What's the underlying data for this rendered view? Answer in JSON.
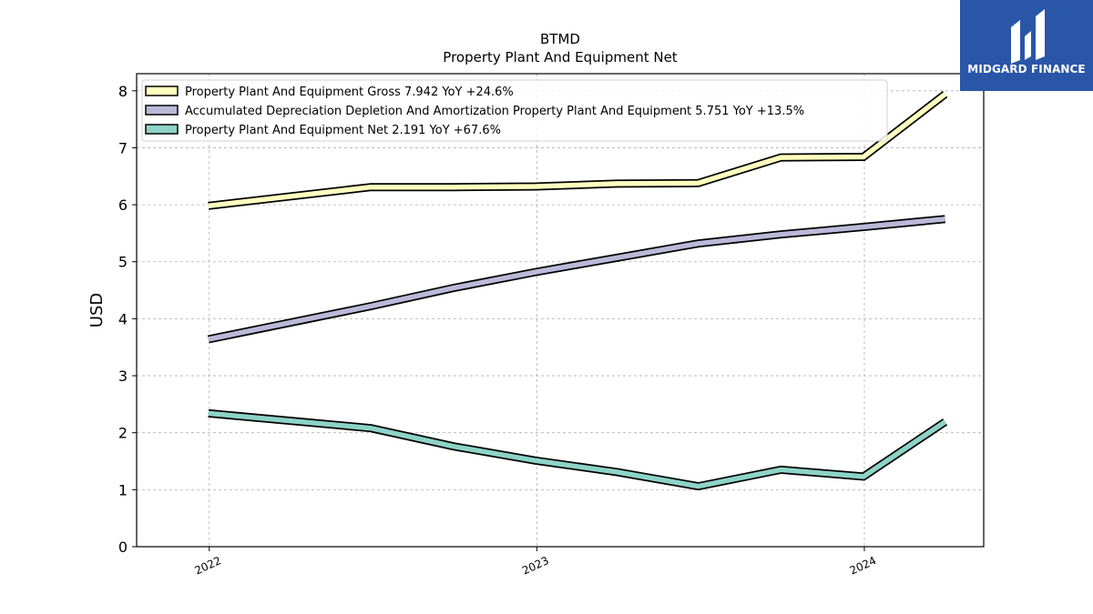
{
  "chart_data": {
    "type": "line",
    "title": "BTMD",
    "subtitle": "Property Plant And Equipment Net",
    "xlabel": "",
    "ylabel": "USD",
    "ylim": [
      0,
      8.3
    ],
    "yticks": [
      0,
      1,
      2,
      3,
      4,
      5,
      6,
      7,
      8
    ],
    "xticks": [
      "2022",
      "2023",
      "2024"
    ],
    "grid": true,
    "legend_position": "top-left",
    "x": [
      "2021-12-31",
      "2022-06-30",
      "2022-09-30",
      "2022-12-31",
      "2023-03-31",
      "2023-06-30",
      "2023-09-30",
      "2023-12-31",
      "2024-03-31"
    ],
    "series": [
      {
        "name": "Property Plant And Equipment Gross",
        "legend": "Property Plant And Equipment Gross  7.942 YoY +24.6%",
        "color": "#ffffbf",
        "values": [
          5.98,
          6.31,
          6.31,
          6.32,
          6.37,
          6.38,
          6.83,
          6.84,
          7.94
        ]
      },
      {
        "name": "Accumulated Depreciation Depletion And Amortization Property Plant And Equipment",
        "legend": "Accumulated Depreciation Depletion And Amortization Property Plant And Equipment  5.751 YoY +13.5%",
        "color": "#bcb8d8",
        "values": [
          3.64,
          4.22,
          4.54,
          4.82,
          5.07,
          5.32,
          5.48,
          5.61,
          5.75
        ]
      },
      {
        "name": "Property Plant And Equipment Net",
        "legend": "Property Plant And Equipment Net  2.191 YoY +67.6%",
        "color": "#8dd3c7",
        "values": [
          2.34,
          2.08,
          1.76,
          1.51,
          1.31,
          1.06,
          1.35,
          1.23,
          2.19
        ]
      }
    ]
  },
  "logo": {
    "text": "MIDGARD FINANCE"
  }
}
